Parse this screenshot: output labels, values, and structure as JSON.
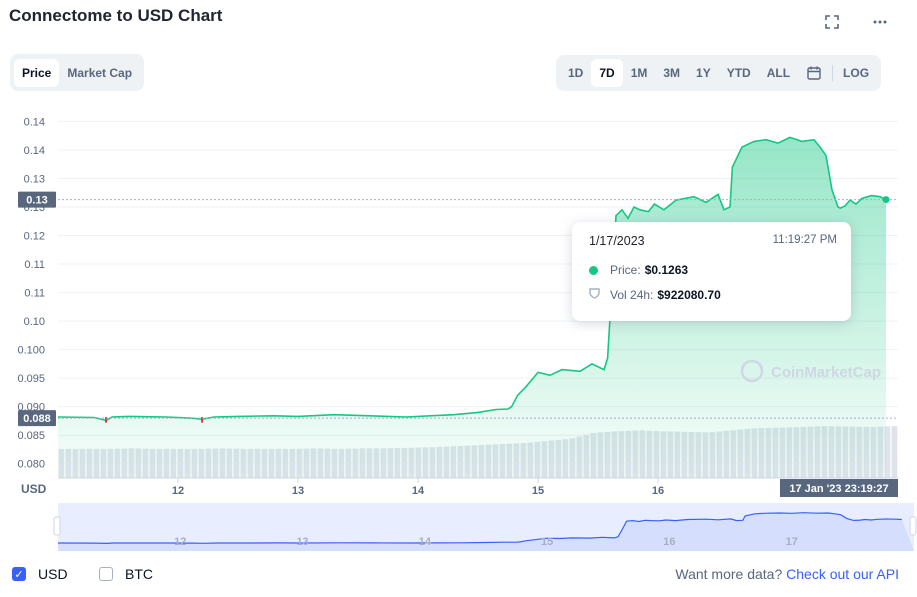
{
  "header": {
    "title": "Connectome to USD Chart",
    "fullscreen_icon": "fullscreen-icon",
    "more_icon": "more-icon"
  },
  "mode_tabs": [
    {
      "label": "Price",
      "active": true
    },
    {
      "label": "Market Cap",
      "active": false
    }
  ],
  "range_tabs": [
    {
      "label": "1D",
      "active": false
    },
    {
      "label": "7D",
      "active": true
    },
    {
      "label": "1M",
      "active": false
    },
    {
      "label": "3M",
      "active": false
    },
    {
      "label": "1Y",
      "active": false
    },
    {
      "label": "YTD",
      "active": false
    },
    {
      "label": "ALL",
      "active": false
    }
  ],
  "calendar_icon": "calendar-icon",
  "log_label": "LOG",
  "tooltip": {
    "date": "1/17/2023",
    "time": "11:19:27 PM",
    "price_label": "Price:",
    "price_value": "$0.1263",
    "vol_label": "Vol 24h:",
    "vol_value": "$922080.70"
  },
  "watermark": "CoinMarketCap",
  "crosshair_label": "17 Jan '23   23:19:27",
  "footer": {
    "usd_label": "USD",
    "btc_label": "BTC",
    "usd_checked": true,
    "btc_checked": false,
    "more_data_text": "Want more data?",
    "api_link": "Check out our API"
  },
  "colors": {
    "up": "#16c784",
    "down": "#ea3943",
    "accent": "#3861fb"
  },
  "chart_data": {
    "type": "area",
    "currency_label": "USD",
    "y_ticks": [
      {
        "value": 0.08,
        "label": "0.080"
      },
      {
        "value": 0.085,
        "label": "0.085"
      },
      {
        "value": 0.09,
        "label": "0.090"
      },
      {
        "value": 0.095,
        "label": "0.095"
      },
      {
        "value": 0.1,
        "label": "0.100"
      },
      {
        "value": 0.105,
        "label": "0.10"
      },
      {
        "value": 0.11,
        "label": "0.11"
      },
      {
        "value": 0.115,
        "label": "0.11"
      },
      {
        "value": 0.12,
        "label": "0.12"
      },
      {
        "value": 0.125,
        "label": "0.13"
      },
      {
        "value": 0.13,
        "label": "0.13"
      },
      {
        "value": 0.135,
        "label": "0.14"
      },
      {
        "value": 0.14,
        "label": "0.14"
      }
    ],
    "x_ticks": [
      {
        "day": 12,
        "label": "12"
      },
      {
        "day": 13,
        "label": "13"
      },
      {
        "day": 14,
        "label": "14"
      },
      {
        "day": 15,
        "label": "15"
      },
      {
        "day": 16,
        "label": "16"
      }
    ],
    "navigator_ticks": [
      "12",
      "13",
      "14",
      "15",
      "16",
      "17"
    ],
    "xlim": [
      11.0,
      18.0
    ],
    "ylim": [
      0.0775,
      0.142
    ],
    "start_marker": {
      "value": 0.088,
      "label": "0.088"
    },
    "current_marker": {
      "value": 0.1263,
      "label": "0.13"
    },
    "series": [
      {
        "x": [
          11.0,
          11.3,
          11.4,
          11.45,
          11.6,
          11.9,
          12.1,
          12.2,
          12.3,
          12.5,
          12.8,
          13.0,
          13.3,
          13.6,
          13.9,
          14.1,
          14.3,
          14.5,
          14.65,
          14.75,
          14.78,
          14.83,
          14.9,
          15.0,
          15.1,
          15.2,
          15.35,
          15.45,
          15.55,
          15.58,
          15.62,
          15.65,
          15.7,
          15.75,
          15.8,
          15.85,
          15.92,
          15.97,
          16.05,
          16.15,
          16.3,
          16.4,
          16.5,
          16.55,
          16.6,
          16.62,
          16.7,
          16.8,
          16.9,
          17.0,
          17.1,
          17.2,
          17.3,
          17.35,
          17.4,
          17.45,
          17.5,
          17.52,
          17.56,
          17.6,
          17.65,
          17.7,
          17.78,
          17.85,
          17.9
        ],
        "values": [
          0.0882,
          0.0881,
          0.0876,
          0.0882,
          0.0883,
          0.0882,
          0.088,
          0.0878,
          0.0882,
          0.0883,
          0.0884,
          0.0883,
          0.0886,
          0.0884,
          0.0882,
          0.0884,
          0.0886,
          0.089,
          0.0895,
          0.0896,
          0.09,
          0.092,
          0.0935,
          0.096,
          0.0955,
          0.0965,
          0.0962,
          0.0975,
          0.0965,
          0.0985,
          0.1125,
          0.1235,
          0.1245,
          0.123,
          0.125,
          0.1245,
          0.1242,
          0.1255,
          0.1245,
          0.1262,
          0.1268,
          0.1258,
          0.1272,
          0.1245,
          0.125,
          0.132,
          0.1355,
          0.1365,
          0.1368,
          0.1362,
          0.1372,
          0.1365,
          0.1368,
          0.1355,
          0.134,
          0.128,
          0.125,
          0.1248,
          0.1252,
          0.1262,
          0.1255,
          0.1265,
          0.127,
          0.1268,
          0.1263
        ]
      }
    ],
    "volume_relative": [
      0.55,
      0.55,
      0.55,
      0.56,
      0.55,
      0.55,
      0.55,
      0.56,
      0.55,
      0.55,
      0.55,
      0.56,
      0.55,
      0.56,
      0.56,
      0.57,
      0.58,
      0.6,
      0.62,
      0.64,
      0.66,
      0.7,
      0.74,
      0.85,
      0.88,
      0.9,
      0.88,
      0.87,
      0.86,
      0.9,
      0.94,
      0.95,
      0.96,
      0.98,
      0.97,
      0.96,
      0.98
    ]
  }
}
